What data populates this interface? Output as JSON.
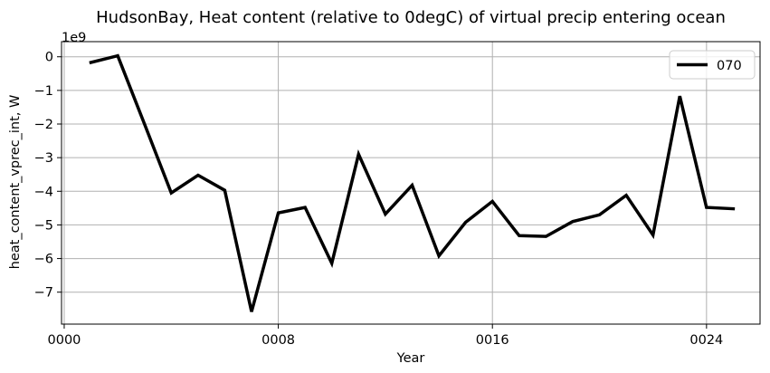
{
  "chart_data": {
    "type": "line",
    "title": "HudsonBay, Heat content (relative to 0degC) of virtual precip entering ocean",
    "xlabel": "Year",
    "ylabel": "heat_content_vprec_int, W",
    "y_offset_label": "1e9",
    "y_scale": 1000000000,
    "xlim": [
      -0.1,
      26.0
    ],
    "ylim": [
      -7.95,
      0.45
    ],
    "x_ticks": [
      0,
      8,
      16,
      24
    ],
    "x_tick_labels": [
      "0000",
      "0008",
      "0016",
      "0024"
    ],
    "y_ticks": [
      0,
      -1,
      -2,
      -3,
      -4,
      -5,
      -6,
      -7
    ],
    "y_tick_labels": [
      "0",
      "−1",
      "−2",
      "−3",
      "−4",
      "−5",
      "−6",
      "−7"
    ],
    "grid": true,
    "legend_position": "top-right",
    "series": [
      {
        "name": "070",
        "color": "#000000",
        "x": [
          1,
          2,
          3,
          4,
          5,
          6,
          7,
          8,
          9,
          10,
          11,
          12,
          13,
          14,
          15,
          16,
          17,
          18,
          19,
          20,
          21,
          22,
          23,
          24,
          25
        ],
        "values": [
          -0.17,
          0.03,
          -2.0,
          -4.05,
          -3.52,
          -3.97,
          -7.58,
          -4.64,
          -4.48,
          -6.14,
          -2.9,
          -4.68,
          -3.82,
          -5.92,
          -4.92,
          -4.3,
          -5.32,
          -5.34,
          -4.9,
          -4.7,
          -4.12,
          -5.3,
          -1.17,
          -4.48,
          -4.52
        ]
      }
    ]
  }
}
